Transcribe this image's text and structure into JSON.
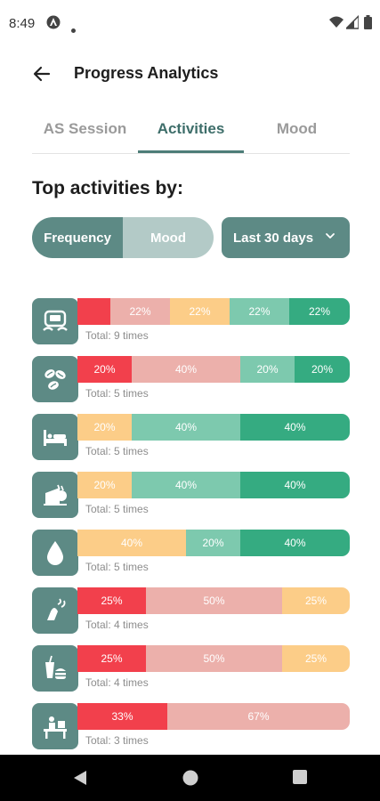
{
  "status_bar": {
    "time": "8:49"
  },
  "header": {
    "title": "Progress Analytics"
  },
  "tabs": [
    {
      "label": "AS Session"
    },
    {
      "label": "Activities"
    },
    {
      "label": "Mood"
    }
  ],
  "section": {
    "title": "Top activities by:"
  },
  "toggle": {
    "options": [
      "Frequency",
      "Mood"
    ],
    "selected": "Frequency"
  },
  "range": {
    "label": "Last 30 days"
  },
  "colors": {
    "red": "#f2404c",
    "pink": "#ecb0ab",
    "yellow": "#fccd88",
    "light_green": "#7dc9ae",
    "green": "#35ab81",
    "accent": "#5d8a85"
  },
  "activities": [
    {
      "icon": "gaming-console-icon",
      "total": "Total: 9 times",
      "segments": [
        {
          "color": "red",
          "label": "",
          "value": 12
        },
        {
          "color": "pink",
          "label": "22%",
          "value": 22
        },
        {
          "color": "yellow",
          "label": "22%",
          "value": 22
        },
        {
          "color": "light_green",
          "label": "22%",
          "value": 22
        },
        {
          "color": "green",
          "label": "22%",
          "value": 22
        }
      ]
    },
    {
      "icon": "coffee-beans-icon",
      "total": "Total: 5 times",
      "segments": [
        {
          "color": "red",
          "label": "20%",
          "value": 20
        },
        {
          "color": "pink",
          "label": "40%",
          "value": 40
        },
        {
          "color": "light_green",
          "label": "20%",
          "value": 20
        },
        {
          "color": "green",
          "label": "20%",
          "value": 20
        }
      ]
    },
    {
      "icon": "bed-icon",
      "total": "Total: 5 times",
      "segments": [
        {
          "color": "yellow",
          "label": "20%",
          "value": 20
        },
        {
          "color": "light_green",
          "label": "40%",
          "value": 40
        },
        {
          "color": "green",
          "label": "40%",
          "value": 40
        }
      ]
    },
    {
      "icon": "food-icon",
      "total": "Total: 5 times",
      "segments": [
        {
          "color": "yellow",
          "label": "20%",
          "value": 20
        },
        {
          "color": "light_green",
          "label": "40%",
          "value": 40
        },
        {
          "color": "green",
          "label": "40%",
          "value": 40
        }
      ]
    },
    {
      "icon": "water-drop-icon",
      "total": "Total: 5 times",
      "segments": [
        {
          "color": "yellow",
          "label": "40%",
          "value": 40
        },
        {
          "color": "light_green",
          "label": "20%",
          "value": 20
        },
        {
          "color": "green",
          "label": "40%",
          "value": 40
        }
      ]
    },
    {
      "icon": "smoking-icon",
      "total": "Total: 4 times",
      "segments": [
        {
          "color": "red",
          "label": "25%",
          "value": 25
        },
        {
          "color": "pink",
          "label": "50%",
          "value": 50
        },
        {
          "color": "yellow",
          "label": "25%",
          "value": 25
        }
      ]
    },
    {
      "icon": "fast-food-icon",
      "total": "Total: 4 times",
      "segments": [
        {
          "color": "red",
          "label": "25%",
          "value": 25
        },
        {
          "color": "pink",
          "label": "50%",
          "value": 50
        },
        {
          "color": "yellow",
          "label": "25%",
          "value": 25
        }
      ]
    },
    {
      "icon": "work-desk-icon",
      "total": "Total: 3 times",
      "segments": [
        {
          "color": "red",
          "label": "33%",
          "value": 33
        },
        {
          "color": "pink",
          "label": "67%",
          "value": 67
        }
      ]
    }
  ]
}
